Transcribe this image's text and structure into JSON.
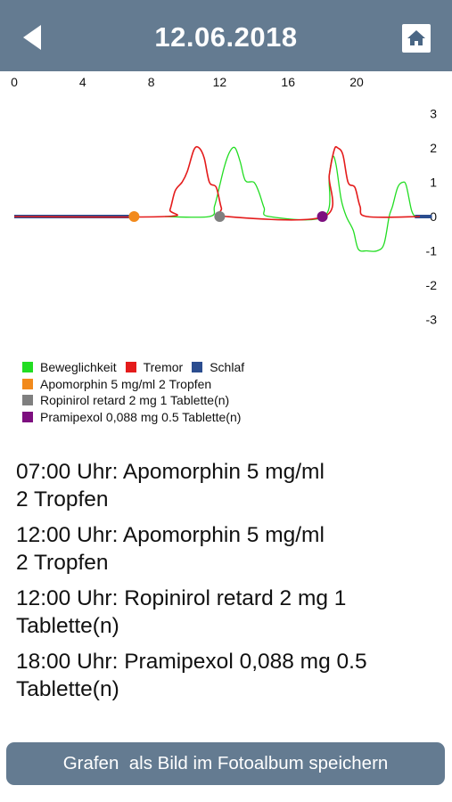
{
  "header": {
    "title": "12.06.2018",
    "back_icon": "back-arrow-icon",
    "home_icon": "home-icon"
  },
  "colors": {
    "header_bg": "#647b91",
    "mobility": "#22dd22",
    "tremor": "#e41b1b",
    "sleep": "#2b4d8f",
    "apomorphin": "#f28a1c",
    "ropinirol": "#7f7f7f",
    "pramipexol": "#7d0f7f"
  },
  "chart_data": {
    "type": "line",
    "xlim": [
      0,
      24
    ],
    "ylim": [
      -3,
      3
    ],
    "x_ticks": [
      "0",
      "4",
      "8",
      "12",
      "16",
      "20"
    ],
    "x_tick_values": [
      0,
      4,
      8,
      12,
      16,
      20
    ],
    "y_ticks": [
      "3",
      "2",
      "1",
      "0",
      "-1",
      "-2",
      "-3"
    ],
    "y_tick_values": [
      3,
      2,
      1,
      0,
      -1,
      -2,
      -3
    ],
    "grid": false,
    "series": [
      {
        "name": "Beweglichkeit",
        "color": "#22dd22",
        "points": [
          [
            8.8,
            0
          ],
          [
            11.4,
            0
          ],
          [
            11.7,
            0.3
          ],
          [
            12.0,
            0.9
          ],
          [
            12.3,
            1.5
          ],
          [
            12.6,
            1.9
          ],
          [
            12.9,
            2.0
          ],
          [
            13.2,
            1.6
          ],
          [
            13.5,
            1.05
          ],
          [
            14.0,
            1.0
          ],
          [
            14.3,
            0.7
          ],
          [
            14.6,
            0.25
          ],
          [
            14.9,
            0
          ],
          [
            18.1,
            0
          ],
          [
            18.4,
            1.2
          ],
          [
            18.6,
            1.75
          ],
          [
            18.8,
            1.5
          ],
          [
            19.1,
            0.5
          ],
          [
            19.4,
            0
          ],
          [
            19.8,
            -0.4
          ],
          [
            20.1,
            -0.95
          ],
          [
            20.6,
            -1.0
          ],
          [
            21.2,
            -1.0
          ],
          [
            21.6,
            -0.8
          ],
          [
            21.9,
            0
          ],
          [
            22.1,
            0.3
          ],
          [
            22.4,
            0.85
          ],
          [
            22.7,
            1.0
          ],
          [
            22.9,
            0.9
          ],
          [
            23.2,
            0.2
          ],
          [
            23.4,
            0
          ]
        ]
      },
      {
        "name": "Tremor",
        "color": "#e41b1b",
        "points": [
          [
            0,
            0
          ],
          [
            8.8,
            0
          ],
          [
            9.1,
            0.2
          ],
          [
            9.4,
            0.75
          ],
          [
            9.8,
            1.0
          ],
          [
            10.1,
            1.3
          ],
          [
            10.5,
            1.95
          ],
          [
            10.8,
            2.0
          ],
          [
            11.1,
            1.7
          ],
          [
            11.4,
            1.0
          ],
          [
            11.8,
            0.85
          ],
          [
            12.1,
            0.25
          ],
          [
            12.4,
            0
          ],
          [
            18.1,
            0
          ],
          [
            18.4,
            1.2
          ],
          [
            18.7,
            1.95
          ],
          [
            18.9,
            2.0
          ],
          [
            19.2,
            1.8
          ],
          [
            19.5,
            1.0
          ],
          [
            19.9,
            0.85
          ],
          [
            20.2,
            0.3
          ],
          [
            20.6,
            0
          ],
          [
            23.7,
            0
          ]
        ]
      },
      {
        "name": "Schlaf",
        "color": "#2b4d8f",
        "segments": [
          [
            [
              0,
              0
            ],
            [
              6.9,
              0
            ]
          ],
          [
            [
              23.4,
              0
            ],
            [
              24.4,
              0
            ]
          ]
        ]
      }
    ],
    "events": [
      {
        "name": "Apomorphin 5 mg/ml 2 Tropfen",
        "color": "#f28a1c",
        "x": 7.0,
        "y": 0
      },
      {
        "name": "Ropinirol retard 2 mg 1 Tablette(n)",
        "color": "#7f7f7f",
        "x": 12.0,
        "y": 0
      },
      {
        "name": "Pramipexol 0,088 mg 0.5 Tablette(n)",
        "color": "#7d0f7f",
        "x": 18.0,
        "y": 0
      }
    ]
  },
  "legend": {
    "row1": [
      {
        "label": "Beweglichkeit",
        "color": "#22dd22"
      },
      {
        "label": "Tremor",
        "color": "#e41b1b"
      },
      {
        "label": "Schlaf",
        "color": "#2b4d8f"
      }
    ],
    "row2": {
      "label": "Apomorphin 5 mg/ml 2 Tropfen",
      "color": "#f28a1c"
    },
    "row3": {
      "label": "Ropinirol retard 2 mg 1 Tablette(n)",
      "color": "#7f7f7f"
    },
    "row4": {
      "label": "Pramipexol 0,088 mg 0.5 Tablette(n)",
      "color": "#7d0f7f"
    }
  },
  "entries": [
    "07:00 Uhr: Apomorphin 5 mg/ml\n2 Tropfen",
    "12:00 Uhr: Apomorphin 5 mg/ml\n2 Tropfen",
    "12:00 Uhr: Ropinirol retard 2 mg 1\nTablette(n)",
    "18:00 Uhr: Pramipexol 0,088 mg 0.5\nTablette(n)"
  ],
  "save_button": {
    "label": "Grafen  als Bild im Fotoalbum speichern"
  }
}
